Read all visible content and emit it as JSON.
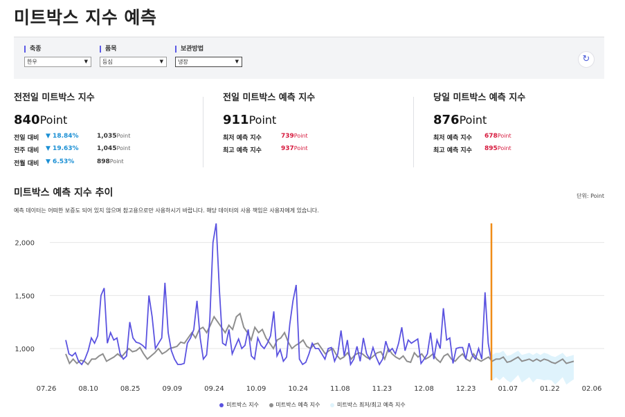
{
  "page": {
    "title": "미트박스 지수 예측"
  },
  "filters": {
    "species": {
      "label": "축종",
      "value": "한우"
    },
    "item": {
      "label": "품목",
      "value": "등심"
    },
    "storage": {
      "label": "보관방법",
      "value": "냉장"
    }
  },
  "stats": {
    "prev": {
      "title": "전전일 미트박스 지수",
      "value": "840",
      "unit": "Point",
      "rows": [
        {
          "label": "전일 대비",
          "pct": "▼ 18.84%",
          "num": "1,035",
          "unit": "Point"
        },
        {
          "label": "전주 대비",
          "pct": "▼ 19.63%",
          "num": "1,045",
          "unit": "Point"
        },
        {
          "label": "전월 대비",
          "pct": "▼ 6.53%",
          "num": "898",
          "unit": "Point"
        }
      ]
    },
    "yesterday": {
      "title": "전일 미트박스 예측 지수",
      "value": "911",
      "unit": "Point",
      "min_label": "최저 예측 지수",
      "min_value": "739",
      "min_unit": "Point",
      "max_label": "최고 예측 지수",
      "max_value": "937",
      "max_unit": "Point"
    },
    "today": {
      "title": "당일 미트박스 예측 지수",
      "value": "876",
      "unit": "Point",
      "min_label": "최저 예측 지수",
      "min_value": "678",
      "min_unit": "Point",
      "max_label": "최고 예측 지수",
      "max_value": "895",
      "max_unit": "Point"
    }
  },
  "chart_section": {
    "title": "미트박스 예측 지수 추이",
    "unit_label": "단위: Point",
    "notice": "예측 데이터는 어떠한 보증도 되어 있지 않으며 참고용으로만 사용하시기 바랍니다. 해당 데이터의 사용 책임은 사용자에게 있습니다."
  },
  "chart_data": {
    "type": "line",
    "x_ticks": [
      "07.26",
      "08.10",
      "08.25",
      "09.09",
      "09.24",
      "10.09",
      "10.24",
      "11.08",
      "11.23",
      "12.08",
      "12.23",
      "01.07",
      "01.22",
      "02.06"
    ],
    "y_ticks": [
      "1,000",
      "1,500",
      "2,000"
    ],
    "ylim": [
      700,
      2200
    ],
    "current_marker_x": 12.23,
    "series": [
      {
        "name": "미트박스 지수",
        "color": "#5a52e0",
        "values": [
          1080,
          950,
          930,
          960,
          880,
          850,
          900,
          980,
          1100,
          1050,
          1120,
          1500,
          1570,
          1050,
          1150,
          1080,
          1100,
          950,
          900,
          930,
          1250,
          1100,
          1060,
          1050,
          1030,
          1000,
          1500,
          1300,
          1000,
          1050,
          1100,
          1620,
          1150,
          980,
          900,
          850,
          850,
          860,
          1050,
          1100,
          1180,
          1450,
          1100,
          900,
          940,
          1270,
          2000,
          2180,
          1550,
          1050,
          1030,
          1180,
          950,
          1020,
          1090,
          1000,
          1030,
          1180,
          930,
          900,
          1100,
          1030,
          1000,
          1050,
          1120,
          1350,
          930,
          990,
          880,
          920,
          1230,
          1450,
          1600,
          900,
          850,
          870,
          950,
          1050,
          1000,
          1000,
          950,
          900,
          1000,
          1010,
          880,
          950,
          1170,
          930,
          1080,
          850,
          900,
          1020,
          880,
          1100,
          950,
          900,
          1010,
          920,
          850,
          900,
          1070,
          970,
          1000,
          950,
          1050,
          1200,
          980,
          1080,
          1050,
          1070,
          1090,
          860,
          900,
          950,
          1150,
          900,
          1080,
          1000,
          1380,
          1080,
          1100,
          860,
          1000,
          1010,
          1010,
          900,
          1050,
          940,
          900,
          1000,
          900,
          1530,
          1050,
          870
        ]
      },
      {
        "name": "미트박스 예측 지수",
        "color": "#8e8e8e",
        "values": [
          950,
          860,
          900,
          860,
          890,
          880,
          850,
          900,
          900,
          930,
          950,
          880,
          900,
          920,
          950,
          920,
          960,
          1000,
          970,
          980,
          1010,
          950,
          900,
          930,
          960,
          1000,
          950,
          970,
          1000,
          1010,
          1020,
          1060,
          1050,
          1100,
          1150,
          1100,
          1180,
          1200,
          1150,
          1220,
          1300,
          1250,
          1200,
          1150,
          1220,
          1180,
          1300,
          1330,
          1200,
          1150,
          1080,
          1200,
          1150,
          1180,
          1100,
          1050,
          1000,
          1080,
          1100,
          1150,
          1060,
          1000,
          1030,
          1050,
          1080,
          1020,
          1000,
          1040,
          1050,
          1000,
          950,
          980,
          1000,
          940,
          900,
          920,
          960,
          900,
          940,
          960,
          950,
          920,
          900,
          930,
          960,
          970,
          900,
          1000,
          950,
          920,
          900,
          930,
          880,
          870,
          960,
          920,
          950,
          900,
          920,
          950,
          900,
          870,
          930,
          950,
          900,
          880,
          920,
          950,
          900,
          880,
          950,
          900,
          880,
          900,
          920,
          880,
          900,
          900,
          920,
          870,
          880,
          900,
          920,
          880,
          890,
          900,
          880,
          900,
          880,
          900,
          890,
          870,
          860,
          880,
          900,
          860,
          870,
          880
        ]
      },
      {
        "name": "미트박스 최저/최고 예측 지수",
        "color": "#dff3fc",
        "values": []
      }
    ]
  },
  "legend": {
    "series1": "미트박스 지수",
    "series2": "미트박스 예측 지수",
    "series3": "미트박스 최저/최고 예측 지수"
  }
}
